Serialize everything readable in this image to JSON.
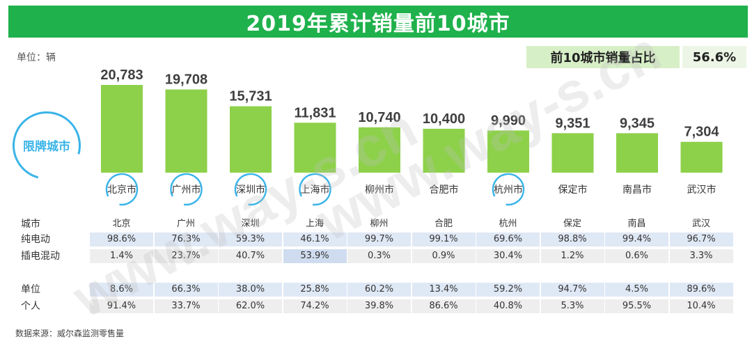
{
  "title": "2019年累计销量前10城市",
  "unit": "单位：辆",
  "share": {
    "label": "前10城市销量占比",
    "value": "56.6%"
  },
  "restricted_label": "限牌城市",
  "restricted_cities": [
    "北京市",
    "广州市",
    "深圳市",
    "上海市",
    "杭州市"
  ],
  "table": {
    "header_label": "城市",
    "rows": [
      {
        "label": "纯电动",
        "values": [
          "98.6%",
          "76.3%",
          "59.3%",
          "46.1%",
          "99.7%",
          "99.1%",
          "69.6%",
          "98.8%",
          "99.4%",
          "96.7%"
        ]
      },
      {
        "label": "插电混动",
        "values": [
          "1.4%",
          "23.7%",
          "40.7%",
          "53.9%",
          "0.3%",
          "0.9%",
          "30.4%",
          "1.2%",
          "0.6%",
          "3.3%"
        ]
      },
      {
        "label": "单位",
        "values": [
          "8.6%",
          "66.3%",
          "38.0%",
          "25.8%",
          "60.2%",
          "13.4%",
          "59.2%",
          "94.7%",
          "4.5%",
          "89.6%"
        ]
      },
      {
        "label": "个人",
        "values": [
          "91.4%",
          "33.7%",
          "62.0%",
          "74.2%",
          "39.8%",
          "86.6%",
          "40.8%",
          "5.3%",
          "95.5%",
          "10.4%"
        ]
      }
    ],
    "short_names": [
      "北京",
      "广州",
      "深圳",
      "上海",
      "柳州",
      "合肥",
      "杭州",
      "保定",
      "南昌",
      "武汉"
    ]
  },
  "source": "数据来源：威尔森监测零售量",
  "watermark": "www.way-s.cn",
  "colors": {
    "title_bg": "#1fb14c",
    "bar": "#8dd14a",
    "ring": "#3ab4e8",
    "share_bg": "#d7efc7"
  },
  "chart_data": {
    "type": "bar",
    "categories": [
      "北京市",
      "广州市",
      "深圳市",
      "上海市",
      "柳州市",
      "合肥市",
      "杭州市",
      "保定市",
      "南昌市",
      "武汉市"
    ],
    "values": [
      20783,
      19708,
      15731,
      11831,
      10740,
      10400,
      9990,
      9351,
      9345,
      7304
    ],
    "value_labels": [
      "20,783",
      "19,708",
      "15,731",
      "11,831",
      "10,740",
      "10,400",
      "9,990",
      "9,351",
      "9,345",
      "7,304"
    ],
    "ylim": [
      0,
      22000
    ],
    "grid": false,
    "legend": "none"
  }
}
